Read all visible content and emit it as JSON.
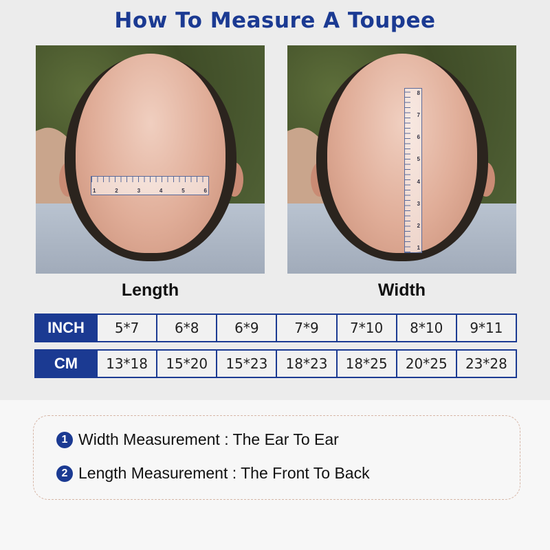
{
  "title": "How To Measure A Toupee",
  "photos": [
    {
      "label": "Length",
      "ruler": [
        "1",
        "2",
        "3",
        "4",
        "5",
        "6"
      ]
    },
    {
      "label": "Width",
      "ruler": [
        "1",
        "2",
        "3",
        "4",
        "5",
        "6",
        "7",
        "8"
      ]
    }
  ],
  "table": {
    "rows": [
      {
        "header": "INCH",
        "cells": [
          "5*7",
          "6*8",
          "6*9",
          "7*9",
          "7*10",
          "8*10",
          "9*11"
        ]
      },
      {
        "header": "CM",
        "cells": [
          "13*18",
          "15*20",
          "15*23",
          "18*23",
          "18*25",
          "20*25",
          "23*28"
        ]
      }
    ]
  },
  "notes": [
    {
      "num": "1",
      "text": "Width Measurement : The Ear To Ear"
    },
    {
      "num": "2",
      "text": "Length Measurement : The Front To Back"
    }
  ],
  "colors": {
    "accent": "#1b3a92"
  }
}
